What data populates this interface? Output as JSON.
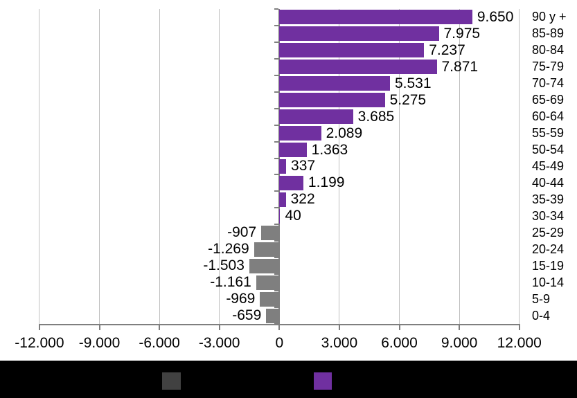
{
  "chart_data": {
    "type": "bar",
    "orientation": "horizontal",
    "title": "",
    "categories": [
      "90 y +",
      "85-89",
      "80-84",
      "75-79",
      "70-74",
      "65-69",
      "60-64",
      "55-59",
      "50-54",
      "45-49",
      "40-44",
      "35-39",
      "30-34",
      "25-29",
      "20-24",
      "15-19",
      "10-14",
      "5-9",
      "0-4"
    ],
    "values": [
      9650,
      7975,
      7237,
      7871,
      5531,
      5275,
      3685,
      2089,
      1363,
      337,
      1199,
      322,
      40,
      -907,
      -1269,
      -1503,
      -1161,
      -969,
      -659
    ],
    "value_labels": [
      "9.650",
      "7.975",
      "7.237",
      "7.871",
      "5.531",
      "5.275",
      "3.685",
      "2.089",
      "1.363",
      "337",
      "1.199",
      "322",
      "40",
      "-907",
      "-1.269",
      "-1.503",
      "-1.161",
      "-969",
      "-659"
    ],
    "x_tick_labels": [
      "-12.000",
      "-9.000",
      "-6.000",
      "-3.000",
      "0",
      "3.000",
      "6.000",
      "9.000",
      "12.000"
    ],
    "x_tick_values": [
      -12000,
      -9000,
      -6000,
      -3000,
      0,
      3000,
      6000,
      9000,
      12000
    ],
    "xlim": [
      -12000,
      12000
    ],
    "grid": true,
    "colors": {
      "positive_bar": "#7030A0",
      "negative_bar": "#7F7F7F"
    },
    "legend": {
      "background": "#000000",
      "items": [
        {
          "swatch_color": "#414141"
        },
        {
          "swatch_color": "#7030A0"
        }
      ]
    }
  }
}
